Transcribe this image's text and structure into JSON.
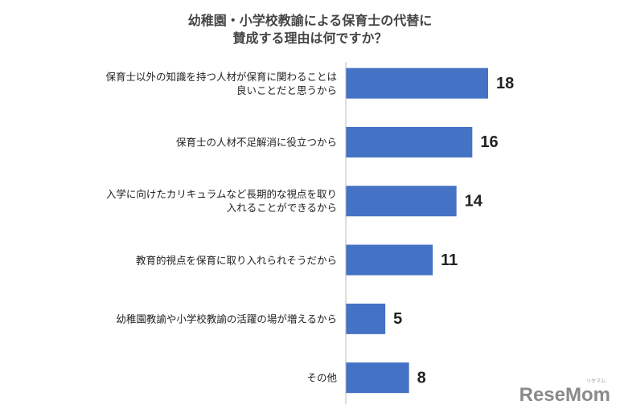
{
  "chart_data": {
    "type": "bar",
    "orientation": "horizontal",
    "title": [
      "幼稚園・小学校教諭による保育士の代替に",
      "賛成する理由は何ですか？"
    ],
    "categories": [
      "保育士以外の知識を持つ人材が保育に関わることは良いことだと思うから",
      "保育士の人材不足解消に役立つから",
      "入学に向けたカリキュラムなど長期的な視点を取り入れることができるから",
      "教育的視点を保育に取り入れられそうだから",
      "幼稚園教諭や小学校教諭の活躍の場が増えるから",
      "その他"
    ],
    "values": [
      18,
      16,
      14,
      11,
      5,
      8
    ],
    "color": "#4472c4"
  },
  "watermark": {
    "logo": "ReseMom",
    "kana": "リセマム"
  }
}
